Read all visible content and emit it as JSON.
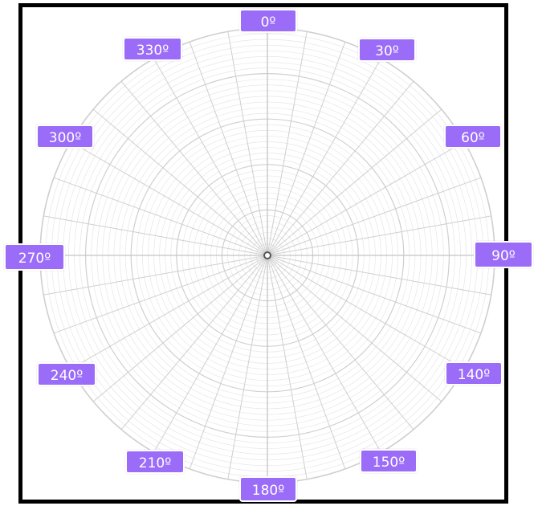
{
  "diagram": {
    "type": "polar-grid",
    "angle_labels": [
      {
        "id": "0",
        "text": "0º"
      },
      {
        "id": "30",
        "text": "30º"
      },
      {
        "id": "60",
        "text": "60º"
      },
      {
        "id": "90",
        "text": "90º"
      },
      {
        "id": "140",
        "text": "140º"
      },
      {
        "id": "150",
        "text": "150º"
      },
      {
        "id": "180",
        "text": "180º"
      },
      {
        "id": "210",
        "text": "210º"
      },
      {
        "id": "240",
        "text": "240º"
      },
      {
        "id": "270",
        "text": "270º"
      },
      {
        "id": "300",
        "text": "300º"
      },
      {
        "id": "330",
        "text": "330º"
      }
    ],
    "label_color": "#9b6cf7",
    "grid_color_major": "#cfcfcf",
    "grid_color_minor": "#e6e6e6",
    "frame_color": "#000000"
  }
}
